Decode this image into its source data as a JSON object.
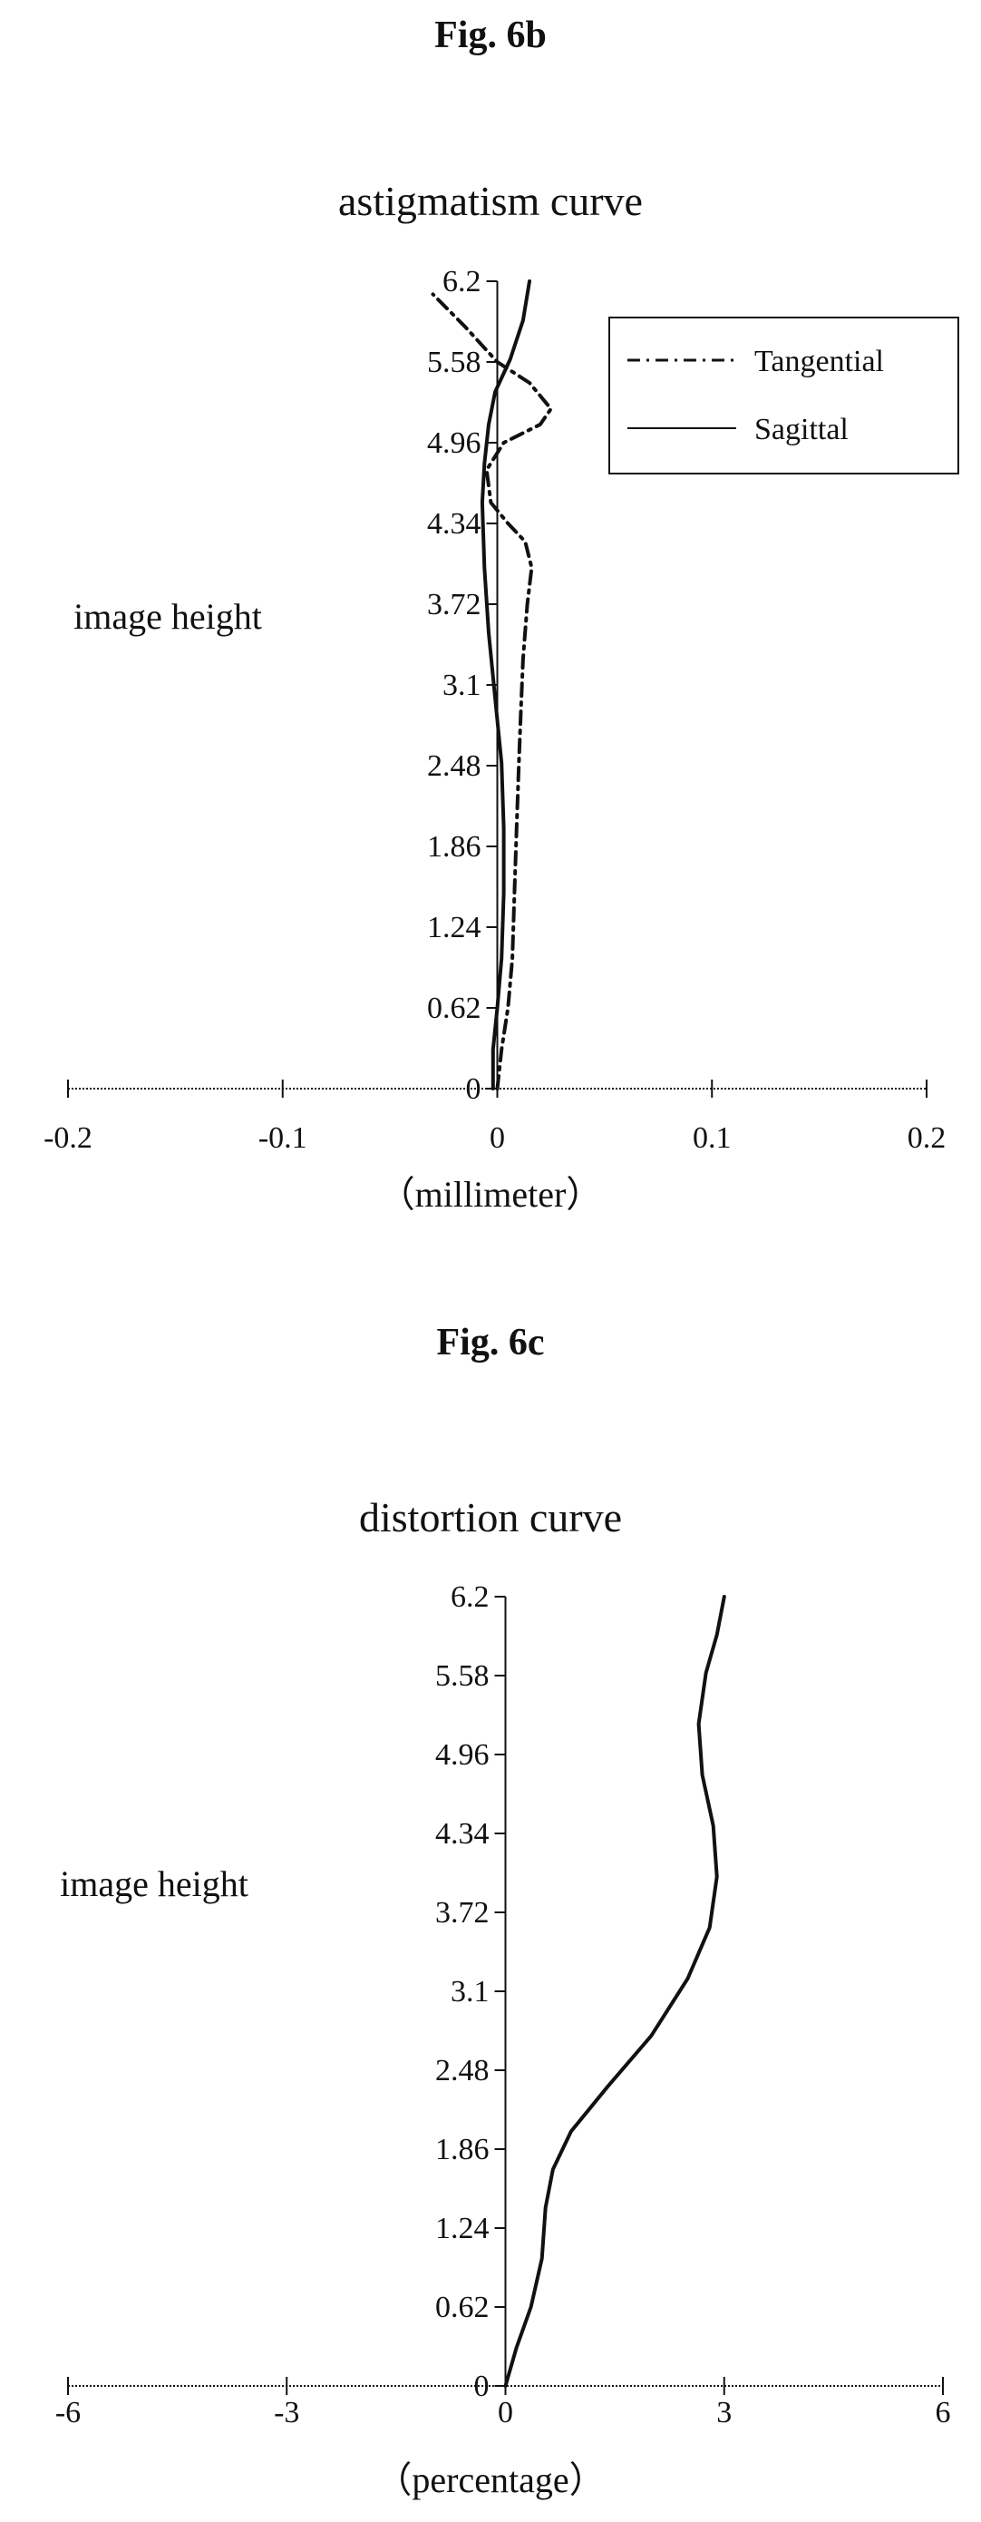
{
  "figures": [
    {
      "fig_label": "Fig. 6b",
      "xlabel": "（millimeter）",
      "ylabel": "image height"
    },
    {
      "fig_label": "Fig. 6c",
      "xlabel": "（percentage）",
      "ylabel": "image height"
    }
  ],
  "chart_data": [
    {
      "type": "line",
      "title": "astigmatism curve",
      "xlabel": "（millimeter）",
      "ylabel": "image height",
      "xlim": [
        -0.2,
        0.2
      ],
      "ylim": [
        0,
        6.2
      ],
      "x_ticks": [
        "-0.2",
        "-0.1",
        "0",
        "0.1",
        "0.2"
      ],
      "y_ticks": [
        "0",
        "0.62",
        "1.24",
        "1.86",
        "2.48",
        "3.1",
        "3.72",
        "4.34",
        "4.96",
        "5.58",
        "6.2"
      ],
      "grid": false,
      "legend_position": "top-right",
      "series": [
        {
          "name": "Tangential",
          "style": "dash-dot",
          "color": "#111111",
          "points": [
            [
              0.0,
              0.0
            ],
            [
              0.002,
              0.3
            ],
            [
              0.005,
              0.62
            ],
            [
              0.007,
              1.0
            ],
            [
              0.008,
              1.5
            ],
            [
              0.009,
              2.0
            ],
            [
              0.01,
              2.48
            ],
            [
              0.011,
              2.9
            ],
            [
              0.012,
              3.3
            ],
            [
              0.014,
              3.72
            ],
            [
              0.016,
              4.0
            ],
            [
              0.013,
              4.2
            ],
            [
              0.005,
              4.34
            ],
            [
              -0.003,
              4.5
            ],
            [
              -0.005,
              4.75
            ],
            [
              0.003,
              4.96
            ],
            [
              0.02,
              5.1
            ],
            [
              0.025,
              5.22
            ],
            [
              0.015,
              5.42
            ],
            [
              0.0,
              5.58
            ],
            [
              -0.015,
              5.85
            ],
            [
              -0.03,
              6.1
            ]
          ]
        },
        {
          "name": "Sagittal",
          "style": "solid",
          "color": "#111111",
          "points": [
            [
              -0.002,
              0.0
            ],
            [
              -0.002,
              0.3
            ],
            [
              0.0,
              0.62
            ],
            [
              0.002,
              1.0
            ],
            [
              0.003,
              1.5
            ],
            [
              0.003,
              2.0
            ],
            [
              0.002,
              2.5
            ],
            [
              -0.001,
              3.0
            ],
            [
              -0.004,
              3.5
            ],
            [
              -0.006,
              4.0
            ],
            [
              -0.007,
              4.5
            ],
            [
              -0.006,
              4.8
            ],
            [
              -0.004,
              5.1
            ],
            [
              -0.001,
              5.35
            ],
            [
              0.006,
              5.6
            ],
            [
              0.012,
              5.9
            ],
            [
              0.015,
              6.2
            ]
          ]
        }
      ]
    },
    {
      "type": "line",
      "title": "distortion curve",
      "xlabel": "（percentage）",
      "ylabel": "image height",
      "xlim": [
        -6,
        6
      ],
      "ylim": [
        0,
        6.2
      ],
      "x_ticks": [
        "-6",
        "-3",
        "0",
        "3",
        "6"
      ],
      "y_ticks": [
        "0",
        "0.62",
        "1.24",
        "1.86",
        "2.48",
        "3.1",
        "3.72",
        "4.34",
        "4.96",
        "5.58",
        "6.2"
      ],
      "grid": false,
      "series": [
        {
          "style": "solid",
          "color": "#111111",
          "points": [
            [
              0.0,
              0.0
            ],
            [
              0.15,
              0.3
            ],
            [
              0.35,
              0.62
            ],
            [
              0.5,
              1.0
            ],
            [
              0.55,
              1.4
            ],
            [
              0.65,
              1.7
            ],
            [
              0.9,
              2.0
            ],
            [
              1.4,
              2.35
            ],
            [
              2.0,
              2.75
            ],
            [
              2.5,
              3.2
            ],
            [
              2.8,
              3.6
            ],
            [
              2.9,
              4.0
            ],
            [
              2.85,
              4.4
            ],
            [
              2.7,
              4.8
            ],
            [
              2.65,
              5.2
            ],
            [
              2.75,
              5.6
            ],
            [
              2.9,
              5.9
            ],
            [
              3.0,
              6.2
            ]
          ]
        }
      ]
    }
  ]
}
